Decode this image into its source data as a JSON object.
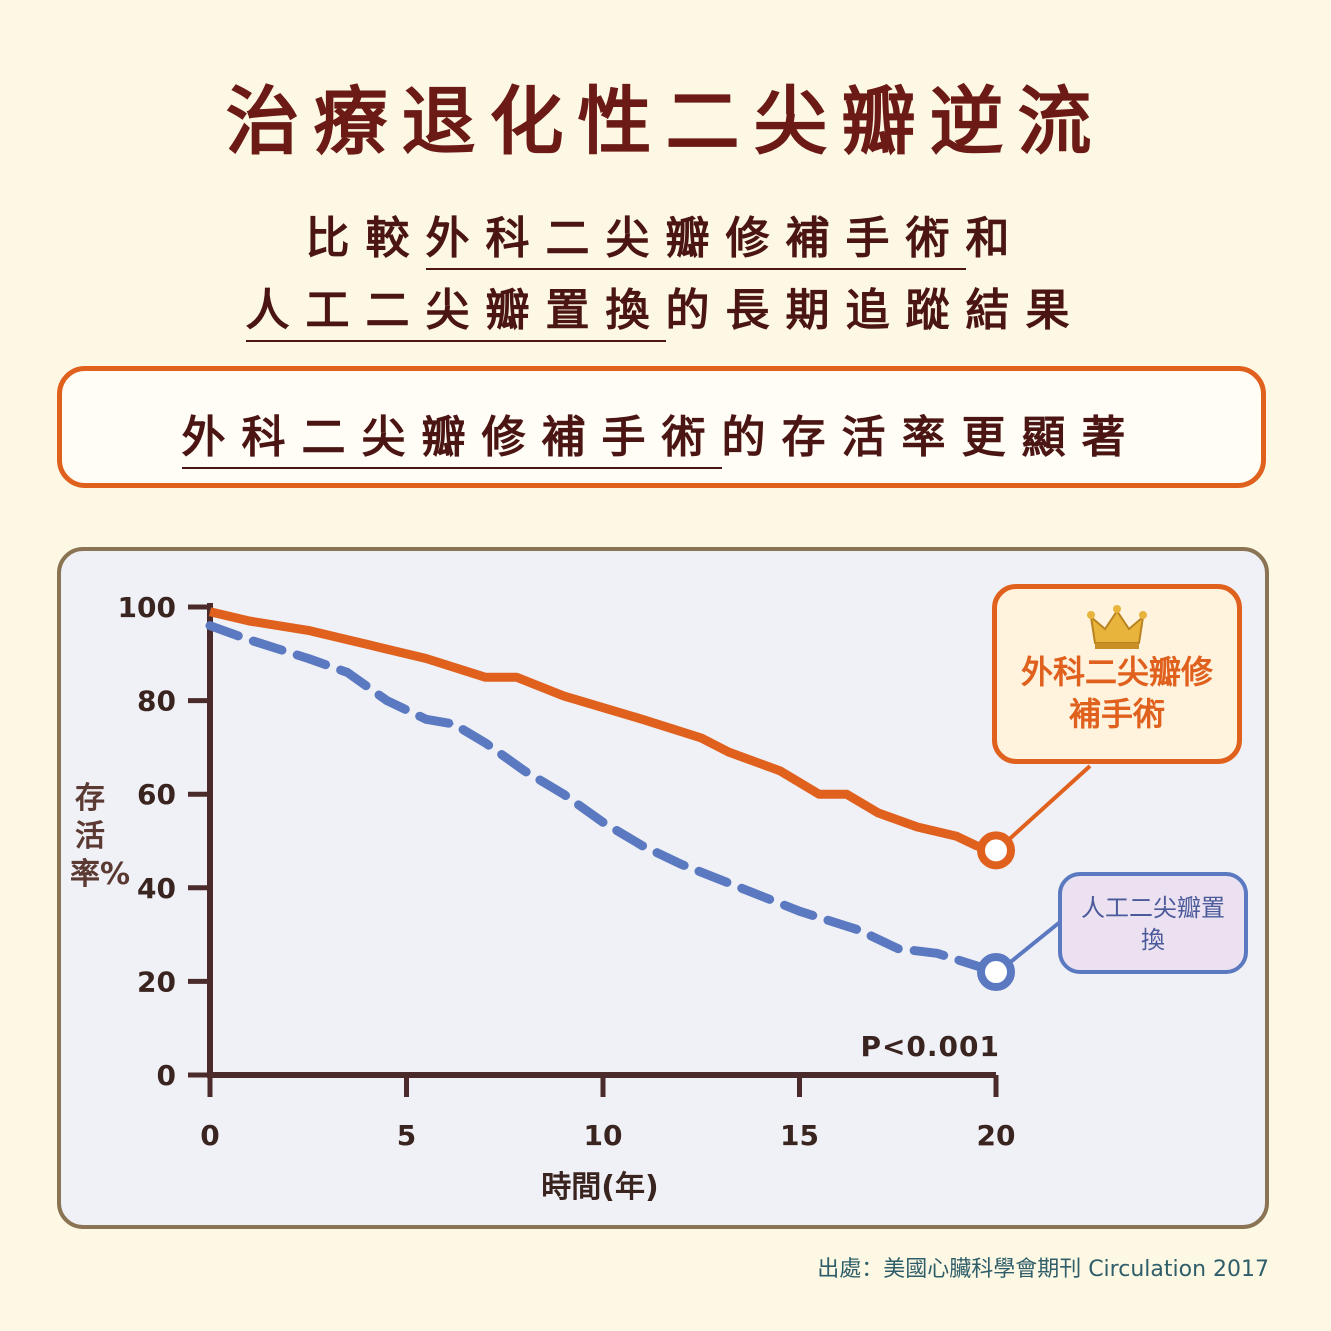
{
  "title": "治療退化性二尖瓣逆流",
  "subtitle": {
    "line1_pre": "比較",
    "line1_ul": "外科二尖瓣修補手術",
    "line1_post": "和",
    "line2_ul": "人工二尖瓣置換",
    "line2_post": "的長期追蹤結果"
  },
  "highlight": {
    "ul": "外科二尖瓣修補手術",
    "post": "的存活率更顯著"
  },
  "legend": {
    "repair": "外科二尖瓣修補手術",
    "replace": "人工二尖瓣置換"
  },
  "source": "出處：美國心臟科學會期刊 Circulation 2017",
  "colors": {
    "repair": "#e0611e",
    "replace": "#5a79c1"
  },
  "icons": {
    "crown": "crown-icon"
  },
  "chart_data": {
    "type": "line",
    "xlabel": "時間(年)",
    "ylabel": "存活率%",
    "xlim": [
      0,
      20
    ],
    "ylim": [
      0,
      100
    ],
    "xticks": [
      0,
      5,
      10,
      15,
      20
    ],
    "yticks": [
      0,
      20,
      40,
      60,
      80,
      100
    ],
    "annotation": "P<0.001",
    "series": [
      {
        "name": "外科二尖瓣修補手術",
        "style": "solid",
        "points": [
          [
            0,
            99
          ],
          [
            1,
            97
          ],
          [
            2.5,
            95
          ],
          [
            4,
            92
          ],
          [
            5.5,
            89
          ],
          [
            7,
            85
          ],
          [
            7.8,
            85
          ],
          [
            9,
            81
          ],
          [
            11,
            76
          ],
          [
            12.5,
            72
          ],
          [
            13.2,
            69
          ],
          [
            14.5,
            65
          ],
          [
            15.5,
            60
          ],
          [
            16.2,
            60
          ],
          [
            17,
            56
          ],
          [
            18,
            53
          ],
          [
            19,
            51
          ],
          [
            19.5,
            49
          ],
          [
            20,
            48
          ]
        ]
      },
      {
        "name": "人工二尖瓣置換",
        "style": "dashed",
        "points": [
          [
            0,
            96
          ],
          [
            1,
            93
          ],
          [
            2.5,
            89
          ],
          [
            3.5,
            86
          ],
          [
            4.5,
            80
          ],
          [
            5.5,
            76
          ],
          [
            6.2,
            75
          ],
          [
            7,
            71
          ],
          [
            8,
            65
          ],
          [
            9,
            60
          ],
          [
            10,
            54
          ],
          [
            11,
            49
          ],
          [
            12,
            45
          ],
          [
            13.5,
            40
          ],
          [
            15,
            35
          ],
          [
            16.5,
            31
          ],
          [
            17.5,
            27
          ],
          [
            18.5,
            26
          ],
          [
            20,
            22
          ]
        ]
      }
    ]
  }
}
